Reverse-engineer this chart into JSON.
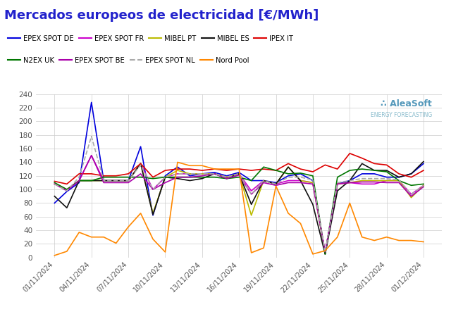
{
  "title": "Mercados europeos de electricidad [€/MWh]",
  "title_color": "#2222cc",
  "background_color": "#ffffff",
  "grid_color": "#cccccc",
  "xtick_labels": [
    "01/11/2024",
    "04/11/2024",
    "07/11/2024",
    "10/11/2024",
    "13/11/2024",
    "16/11/2024",
    "19/11/2024",
    "22/11/2024",
    "25/11/2024",
    "28/11/2024",
    "01/12/2024"
  ],
  "ylim": [
    0,
    240
  ],
  "yticks": [
    0,
    20,
    40,
    60,
    80,
    100,
    120,
    140,
    160,
    180,
    200,
    220,
    240
  ],
  "legend_row1": [
    {
      "label": "EPEX SPOT DE",
      "color": "#0000dd",
      "linestyle": "-"
    },
    {
      "label": "EPEX SPOT FR",
      "color": "#cc00cc",
      "linestyle": "-"
    },
    {
      "label": "MIBEL PT",
      "color": "#bbbb00",
      "linestyle": "-"
    },
    {
      "label": "MIBEL ES",
      "color": "#111111",
      "linestyle": "-"
    },
    {
      "label": "IPEX IT",
      "color": "#dd0000",
      "linestyle": "-"
    }
  ],
  "legend_row2": [
    {
      "label": "N2EX UK",
      "color": "#007700",
      "linestyle": "-"
    },
    {
      "label": "EPEX SPOT BE",
      "color": "#aa00aa",
      "linestyle": "-"
    },
    {
      "label": "EPEX SPOT NL",
      "color": "#aaaaaa",
      "linestyle": "--"
    },
    {
      "label": "Nord Pool",
      "color": "#ff8800",
      "linestyle": "-"
    }
  ],
  "series": {
    "EPEX SPOT DE": {
      "color": "#0000dd",
      "linestyle": "-",
      "values": [
        80,
        97,
        110,
        228,
        113,
        113,
        113,
        163,
        62,
        120,
        133,
        120,
        123,
        125,
        120,
        125,
        113,
        113,
        110,
        120,
        123,
        113,
        5,
        108,
        113,
        123,
        123,
        118,
        118,
        123,
        138
      ]
    },
    "EPEX SPOT FR": {
      "color": "#cc00cc",
      "linestyle": "-",
      "values": [
        108,
        100,
        113,
        150,
        113,
        113,
        113,
        138,
        100,
        118,
        123,
        123,
        123,
        123,
        118,
        123,
        98,
        113,
        108,
        113,
        113,
        110,
        8,
        108,
        110,
        108,
        108,
        113,
        113,
        93,
        106
      ]
    },
    "MIBEL PT": {
      "color": "#bbbb00",
      "linestyle": "-",
      "values": [
        108,
        100,
        113,
        113,
        113,
        113,
        113,
        138,
        65,
        118,
        128,
        123,
        123,
        123,
        118,
        123,
        62,
        113,
        108,
        133,
        113,
        110,
        5,
        108,
        110,
        113,
        113,
        113,
        113,
        88,
        106
      ]
    },
    "MIBEL ES": {
      "color": "#111111",
      "linestyle": "-",
      "values": [
        90,
        73,
        113,
        113,
        113,
        113,
        113,
        138,
        63,
        118,
        116,
        113,
        116,
        123,
        116,
        123,
        78,
        113,
        108,
        133,
        113,
        78,
        5,
        98,
        113,
        138,
        128,
        128,
        118,
        123,
        141
      ]
    },
    "IPEX IT": {
      "color": "#dd0000",
      "linestyle": "-",
      "values": [
        112,
        108,
        123,
        123,
        120,
        120,
        123,
        138,
        118,
        128,
        130,
        130,
        128,
        130,
        128,
        130,
        128,
        130,
        128,
        138,
        130,
        126,
        136,
        130,
        153,
        146,
        138,
        136,
        123,
        118,
        128
      ]
    },
    "N2EX UK": {
      "color": "#007700",
      "linestyle": "-",
      "values": [
        110,
        100,
        113,
        113,
        118,
        118,
        118,
        118,
        116,
        118,
        118,
        118,
        118,
        118,
        116,
        118,
        113,
        133,
        128,
        123,
        124,
        120,
        5,
        118,
        128,
        130,
        128,
        126,
        113,
        106,
        108
      ]
    },
    "EPEX SPOT BE": {
      "color": "#aa00aa",
      "linestyle": "-",
      "values": [
        108,
        98,
        113,
        150,
        110,
        110,
        110,
        123,
        100,
        110,
        118,
        118,
        120,
        123,
        116,
        121,
        93,
        110,
        106,
        110,
        110,
        108,
        8,
        108,
        110,
        111,
        111,
        110,
        110,
        90,
        104
      ]
    },
    "EPEX SPOT NL": {
      "color": "#aaaaaa",
      "linestyle": "--",
      "values": [
        108,
        98,
        118,
        178,
        113,
        113,
        113,
        136,
        100,
        118,
        123,
        123,
        123,
        123,
        118,
        123,
        93,
        113,
        108,
        118,
        118,
        114,
        8,
        110,
        113,
        116,
        116,
        116,
        114,
        93,
        106
      ]
    },
    "Nord Pool": {
      "color": "#ff8800",
      "linestyle": "-",
      "values": [
        3,
        9,
        37,
        30,
        30,
        21,
        45,
        65,
        27,
        8,
        140,
        135,
        135,
        130,
        130,
        130,
        7,
        14,
        105,
        65,
        50,
        5,
        10,
        30,
        80,
        30,
        25,
        30,
        25,
        25,
        23
      ]
    }
  }
}
